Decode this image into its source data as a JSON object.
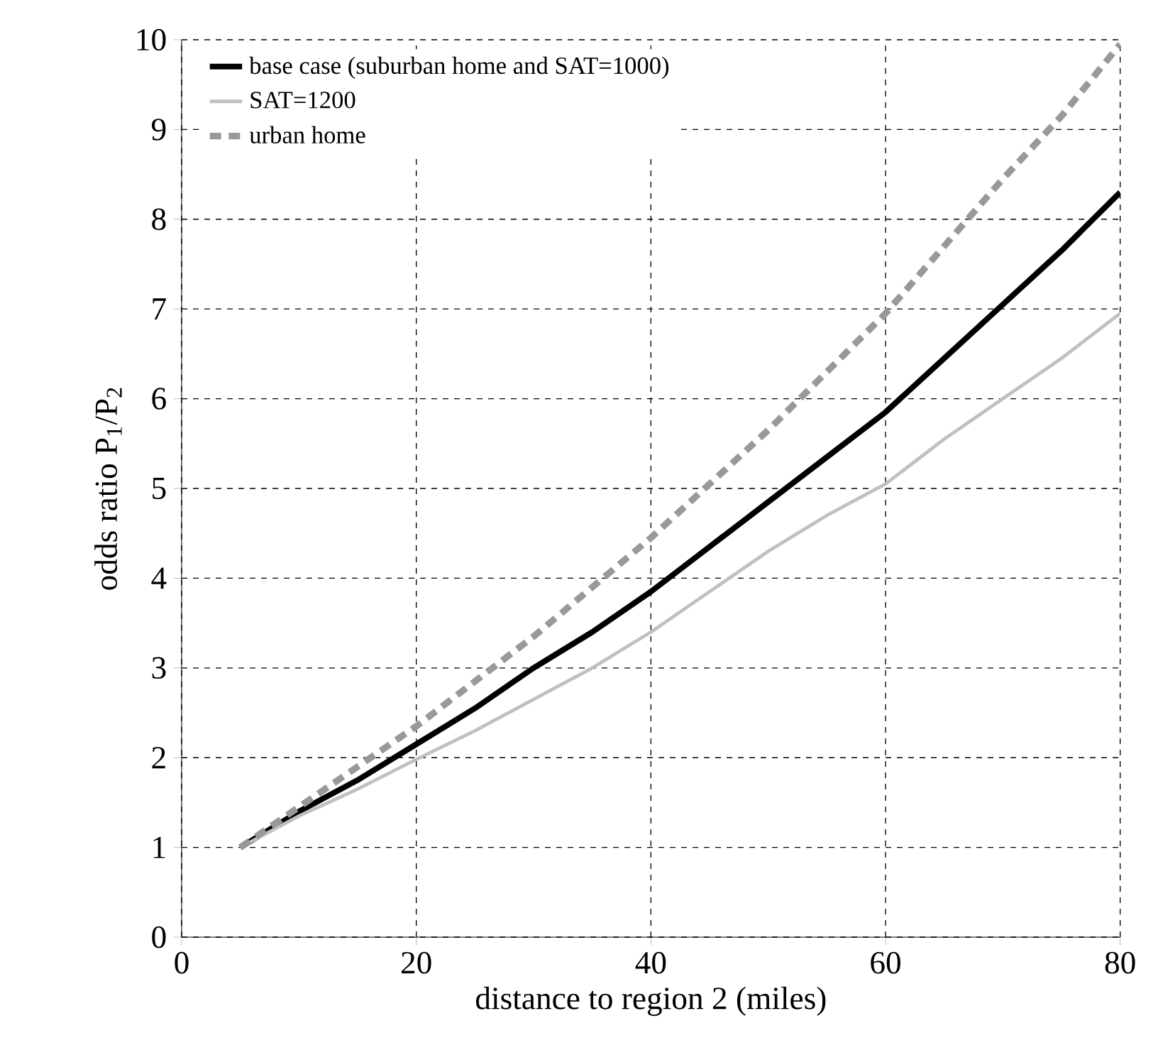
{
  "chart_data": {
    "type": "line",
    "xlabel": "distance to region 2 (miles)",
    "ylabel": "odds ratio  P$_{1}$/P$_{2}$",
    "xlim": [
      0,
      80
    ],
    "ylim": [
      0,
      10
    ],
    "xticks": [
      0,
      20,
      40,
      60,
      80
    ],
    "yticks": [
      0,
      1,
      2,
      3,
      4,
      5,
      6,
      7,
      8,
      9,
      10
    ],
    "grid": true,
    "legend": "top left",
    "marker": "none",
    "x": [
      5,
      10,
      15,
      20,
      25,
      30,
      35,
      40,
      45,
      50,
      55,
      60,
      65,
      70,
      75,
      80
    ],
    "series": [
      {
        "name": "base case (suburban home and SAT=1000)",
        "color": "#000000",
        "line_style": "solid",
        "values": [
          1,
          1.4,
          1.75,
          2.15,
          2.55,
          3.0,
          3.4,
          3.85,
          4.35,
          4.85,
          5.35,
          5.85,
          6.45,
          7.05,
          7.65,
          8.3
        ]
      },
      {
        "name": "SAT=1200",
        "color": "#c0c0c0",
        "line_style": "solid",
        "values": [
          1,
          1.35,
          1.65,
          1.98,
          2.3,
          2.65,
          3.0,
          3.4,
          3.85,
          4.3,
          4.7,
          5.05,
          5.55,
          6.0,
          6.45,
          6.95
        ]
      },
      {
        "name": "urban home",
        "color": "#999999",
        "line_style": "dashed",
        "values": [
          1,
          1.45,
          1.9,
          2.35,
          2.85,
          3.35,
          3.9,
          4.45,
          5.05,
          5.65,
          6.3,
          6.95,
          7.7,
          8.45,
          9.15,
          9.95
        ]
      }
    ]
  }
}
